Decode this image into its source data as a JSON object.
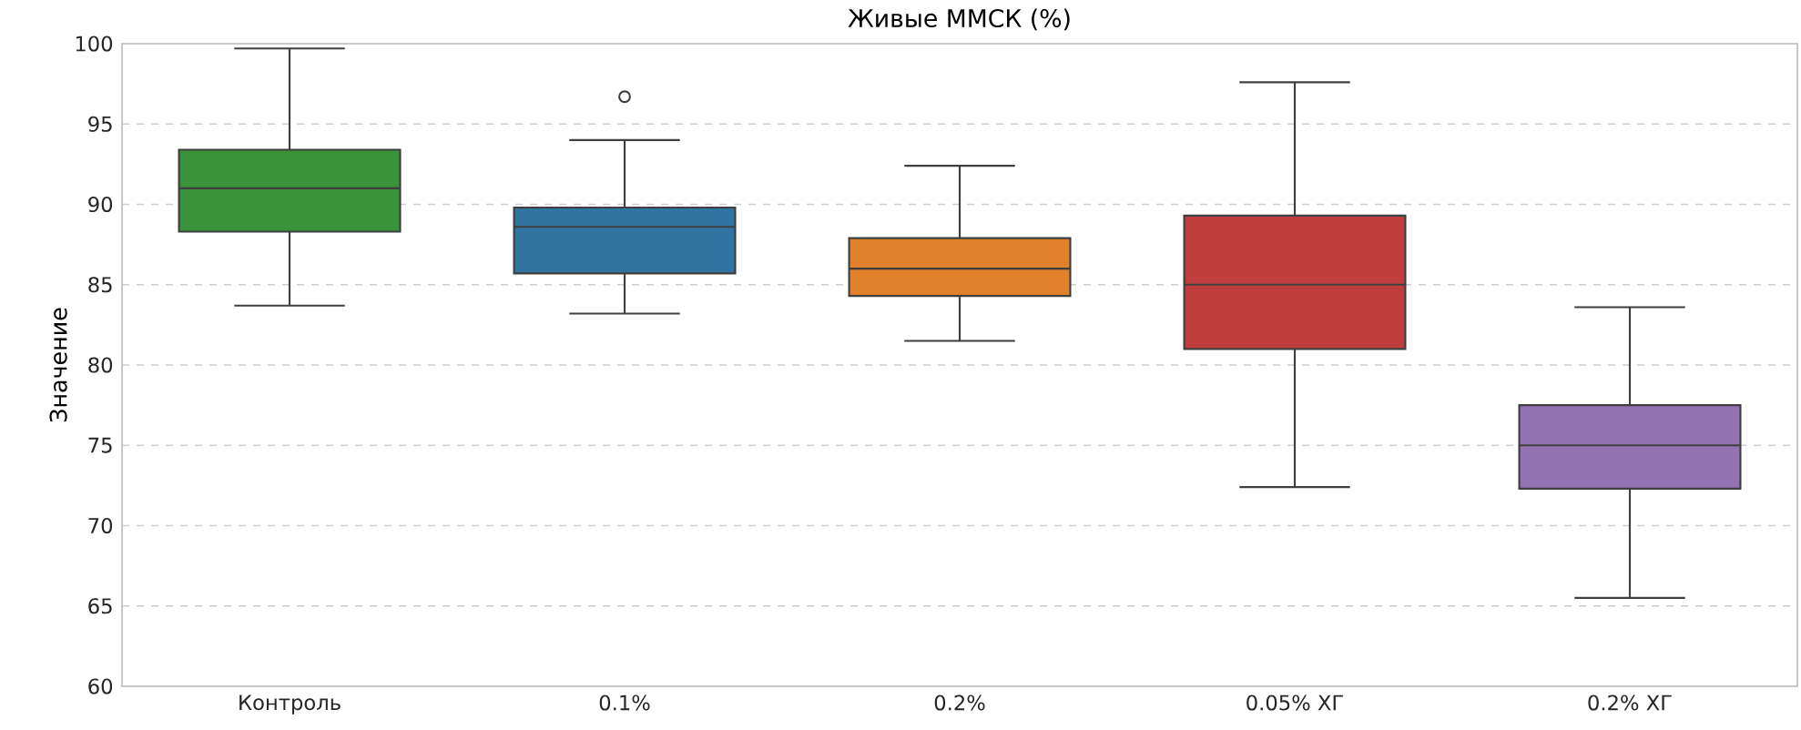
{
  "chart_data": {
    "type": "box",
    "title": "Живые ММСК (%)",
    "ylabel": "Значение",
    "categories": [
      "Контроль",
      "0.1%",
      "0.2%",
      "0.05% ХГ",
      "0.2% ХГ"
    ],
    "colors": [
      "#3a923a",
      "#3274a1",
      "#e1812c",
      "#c03d3e",
      "#9372b2"
    ],
    "boxes": [
      {
        "low": 83.7,
        "q1": 88.3,
        "median": 91.0,
        "q3": 93.4,
        "high": 99.7
      },
      {
        "low": 83.2,
        "q1": 85.7,
        "median": 88.6,
        "q3": 89.8,
        "high": 94.0,
        "outliers": [
          96.7
        ]
      },
      {
        "low": 81.5,
        "q1": 84.3,
        "median": 86.0,
        "q3": 87.9,
        "high": 92.4
      },
      {
        "low": 72.4,
        "q1": 81.0,
        "median": 85.0,
        "q3": 89.3,
        "high": 97.6
      },
      {
        "low": 65.5,
        "q1": 72.3,
        "median": 75.0,
        "q3": 77.5,
        "high": 83.6
      }
    ],
    "ylim": [
      60,
      100
    ],
    "yticks": [
      60,
      65,
      70,
      75,
      80,
      85,
      90,
      95,
      100
    ],
    "grid": "y"
  }
}
